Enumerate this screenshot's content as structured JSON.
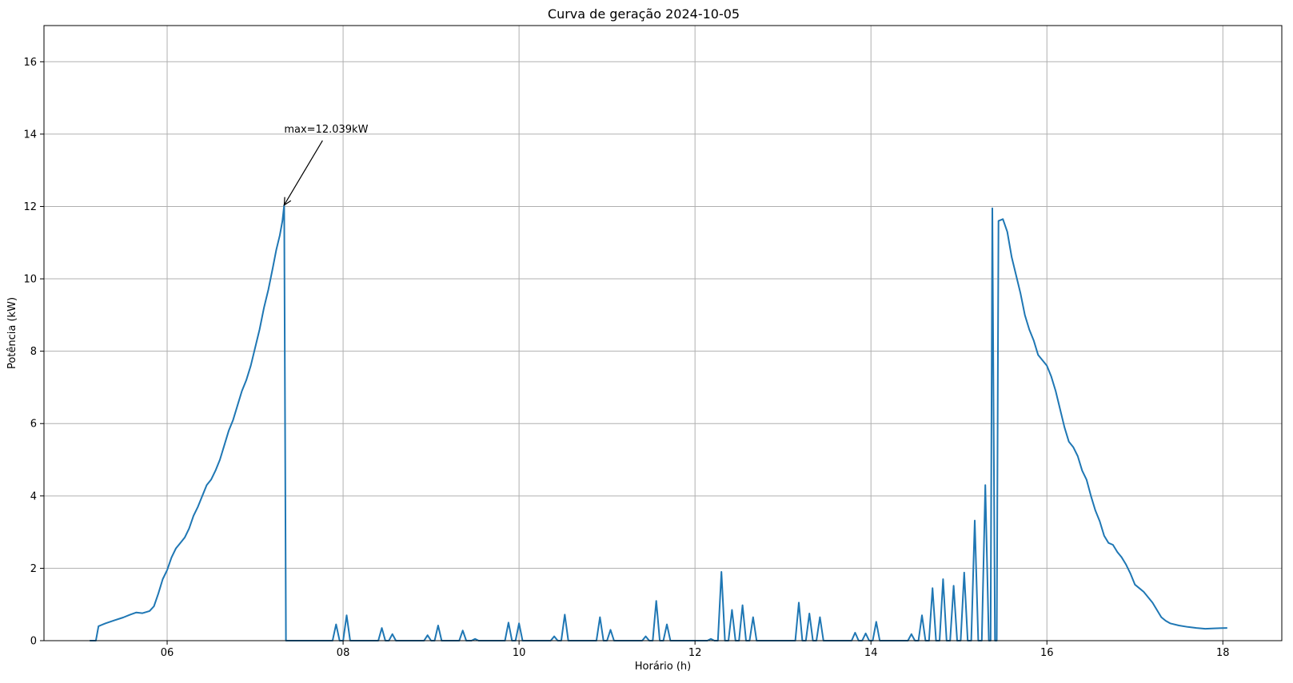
{
  "chart_data": {
    "type": "line",
    "title": "Curva de geração 2024-10-05",
    "xlabel": "Horário (h)",
    "ylabel": "Potência (kW)",
    "xlim": [
      4.6,
      18.67
    ],
    "ylim": [
      0,
      17
    ],
    "grid": true,
    "xticks": [
      6,
      8,
      10,
      12,
      14,
      16,
      18
    ],
    "xtick_labels": [
      "06",
      "08",
      "10",
      "12",
      "14",
      "16",
      "18"
    ],
    "yticks": [
      0,
      2,
      4,
      6,
      8,
      10,
      12,
      14,
      16
    ],
    "ytick_labels": [
      "0",
      "2",
      "4",
      "6",
      "8",
      "10",
      "12",
      "14",
      "16"
    ],
    "annotation": {
      "text": "max=12.039kW",
      "point": [
        7.33,
        12.039
      ],
      "text_at": [
        7.33,
        14.0
      ]
    },
    "series": [
      {
        "color": "#1f77b4",
        "points": [
          [
            5.12,
            0.0
          ],
          [
            5.19,
            0.0
          ],
          [
            5.22,
            0.4
          ],
          [
            5.3,
            0.48
          ],
          [
            5.4,
            0.56
          ],
          [
            5.5,
            0.64
          ],
          [
            5.58,
            0.72
          ],
          [
            5.65,
            0.78
          ],
          [
            5.72,
            0.76
          ],
          [
            5.8,
            0.82
          ],
          [
            5.85,
            0.95
          ],
          [
            5.9,
            1.3
          ],
          [
            5.95,
            1.7
          ],
          [
            6.0,
            1.95
          ],
          [
            6.05,
            2.3
          ],
          [
            6.1,
            2.55
          ],
          [
            6.15,
            2.7
          ],
          [
            6.2,
            2.85
          ],
          [
            6.25,
            3.1
          ],
          [
            6.3,
            3.45
          ],
          [
            6.35,
            3.7
          ],
          [
            6.4,
            4.0
          ],
          [
            6.45,
            4.3
          ],
          [
            6.5,
            4.45
          ],
          [
            6.55,
            4.7
          ],
          [
            6.6,
            5.0
          ],
          [
            6.65,
            5.4
          ],
          [
            6.7,
            5.8
          ],
          [
            6.75,
            6.1
          ],
          [
            6.8,
            6.5
          ],
          [
            6.85,
            6.9
          ],
          [
            6.9,
            7.2
          ],
          [
            6.95,
            7.6
          ],
          [
            7.0,
            8.1
          ],
          [
            7.05,
            8.6
          ],
          [
            7.1,
            9.2
          ],
          [
            7.15,
            9.7
          ],
          [
            7.2,
            10.3
          ],
          [
            7.24,
            10.8
          ],
          [
            7.28,
            11.2
          ],
          [
            7.31,
            11.6
          ],
          [
            7.33,
            12.039
          ],
          [
            7.35,
            0.0
          ],
          [
            7.88,
            0.0
          ],
          [
            7.92,
            0.45
          ],
          [
            7.96,
            0.0
          ],
          [
            8.0,
            0.0
          ],
          [
            8.04,
            0.7
          ],
          [
            8.08,
            0.0
          ],
          [
            8.4,
            0.0
          ],
          [
            8.44,
            0.35
          ],
          [
            8.48,
            0.0
          ],
          [
            8.52,
            0.0
          ],
          [
            8.56,
            0.18
          ],
          [
            8.6,
            0.0
          ],
          [
            8.92,
            0.0
          ],
          [
            8.96,
            0.15
          ],
          [
            9.0,
            0.0
          ],
          [
            9.04,
            0.0
          ],
          [
            9.08,
            0.42
          ],
          [
            9.12,
            0.0
          ],
          [
            9.32,
            0.0
          ],
          [
            9.36,
            0.28
          ],
          [
            9.4,
            0.0
          ],
          [
            9.46,
            0.0
          ],
          [
            9.5,
            0.05
          ],
          [
            9.54,
            0.0
          ],
          [
            9.84,
            0.0
          ],
          [
            9.88,
            0.5
          ],
          [
            9.92,
            0.0
          ],
          [
            9.96,
            0.0
          ],
          [
            10.0,
            0.48
          ],
          [
            10.04,
            0.0
          ],
          [
            10.36,
            0.0
          ],
          [
            10.4,
            0.12
          ],
          [
            10.44,
            0.0
          ],
          [
            10.48,
            0.0
          ],
          [
            10.52,
            0.72
          ],
          [
            10.56,
            0.0
          ],
          [
            10.88,
            0.0
          ],
          [
            10.92,
            0.65
          ],
          [
            10.96,
            0.0
          ],
          [
            11.0,
            0.0
          ],
          [
            11.04,
            0.3
          ],
          [
            11.08,
            0.0
          ],
          [
            11.4,
            0.0
          ],
          [
            11.44,
            0.12
          ],
          [
            11.48,
            0.0
          ],
          [
            11.52,
            0.0
          ],
          [
            11.56,
            1.1
          ],
          [
            11.6,
            0.0
          ],
          [
            11.64,
            0.0
          ],
          [
            11.68,
            0.45
          ],
          [
            11.72,
            0.0
          ],
          [
            12.14,
            0.0
          ],
          [
            12.18,
            0.05
          ],
          [
            12.22,
            0.0
          ],
          [
            12.26,
            0.0
          ],
          [
            12.3,
            1.9
          ],
          [
            12.34,
            0.0
          ],
          [
            12.38,
            0.0
          ],
          [
            12.42,
            0.85
          ],
          [
            12.46,
            0.0
          ],
          [
            12.5,
            0.0
          ],
          [
            12.54,
            0.98
          ],
          [
            12.58,
            0.0
          ],
          [
            12.62,
            0.0
          ],
          [
            12.66,
            0.65
          ],
          [
            12.7,
            0.0
          ],
          [
            13.14,
            0.0
          ],
          [
            13.18,
            1.05
          ],
          [
            13.22,
            0.0
          ],
          [
            13.26,
            0.0
          ],
          [
            13.3,
            0.75
          ],
          [
            13.34,
            0.0
          ],
          [
            13.38,
            0.0
          ],
          [
            13.42,
            0.65
          ],
          [
            13.46,
            0.0
          ],
          [
            13.78,
            0.0
          ],
          [
            13.82,
            0.22
          ],
          [
            13.86,
            0.0
          ],
          [
            13.9,
            0.0
          ],
          [
            13.94,
            0.2
          ],
          [
            13.98,
            0.0
          ],
          [
            14.02,
            0.0
          ],
          [
            14.06,
            0.52
          ],
          [
            14.1,
            0.0
          ],
          [
            14.42,
            0.0
          ],
          [
            14.46,
            0.18
          ],
          [
            14.5,
            0.0
          ],
          [
            14.54,
            0.0
          ],
          [
            14.58,
            0.7
          ],
          [
            14.62,
            0.0
          ],
          [
            14.66,
            0.0
          ],
          [
            14.7,
            1.45
          ],
          [
            14.74,
            0.0
          ],
          [
            14.78,
            0.0
          ],
          [
            14.82,
            1.7
          ],
          [
            14.86,
            0.0
          ],
          [
            14.9,
            0.0
          ],
          [
            14.94,
            1.52
          ],
          [
            14.98,
            0.0
          ],
          [
            15.02,
            0.0
          ],
          [
            15.06,
            1.88
          ],
          [
            15.1,
            0.0
          ],
          [
            15.14,
            0.0
          ],
          [
            15.18,
            3.32
          ],
          [
            15.22,
            0.0
          ],
          [
            15.26,
            0.0
          ],
          [
            15.3,
            4.3
          ],
          [
            15.34,
            0.0
          ],
          [
            15.36,
            0.0
          ],
          [
            15.38,
            11.95
          ],
          [
            15.41,
            0.0
          ],
          [
            15.43,
            0.0
          ],
          [
            15.45,
            11.6
          ],
          [
            15.5,
            11.65
          ],
          [
            15.55,
            11.3
          ],
          [
            15.6,
            10.6
          ],
          [
            15.65,
            10.1
          ],
          [
            15.7,
            9.6
          ],
          [
            15.75,
            9.0
          ],
          [
            15.8,
            8.6
          ],
          [
            15.85,
            8.3
          ],
          [
            15.9,
            7.9
          ],
          [
            15.95,
            7.75
          ],
          [
            16.0,
            7.6
          ],
          [
            16.05,
            7.3
          ],
          [
            16.1,
            6.9
          ],
          [
            16.15,
            6.4
          ],
          [
            16.2,
            5.9
          ],
          [
            16.25,
            5.5
          ],
          [
            16.3,
            5.35
          ],
          [
            16.35,
            5.1
          ],
          [
            16.4,
            4.7
          ],
          [
            16.45,
            4.45
          ],
          [
            16.5,
            4.0
          ],
          [
            16.55,
            3.6
          ],
          [
            16.6,
            3.3
          ],
          [
            16.65,
            2.9
          ],
          [
            16.7,
            2.7
          ],
          [
            16.75,
            2.65
          ],
          [
            16.8,
            2.45
          ],
          [
            16.85,
            2.3
          ],
          [
            16.9,
            2.1
          ],
          [
            16.95,
            1.85
          ],
          [
            17.0,
            1.55
          ],
          [
            17.05,
            1.45
          ],
          [
            17.1,
            1.35
          ],
          [
            17.15,
            1.2
          ],
          [
            17.2,
            1.05
          ],
          [
            17.25,
            0.85
          ],
          [
            17.3,
            0.65
          ],
          [
            17.35,
            0.55
          ],
          [
            17.4,
            0.48
          ],
          [
            17.5,
            0.42
          ],
          [
            17.6,
            0.38
          ],
          [
            17.7,
            0.35
          ],
          [
            17.8,
            0.33
          ],
          [
            17.9,
            0.34
          ],
          [
            18.05,
            0.35
          ]
        ]
      }
    ]
  }
}
